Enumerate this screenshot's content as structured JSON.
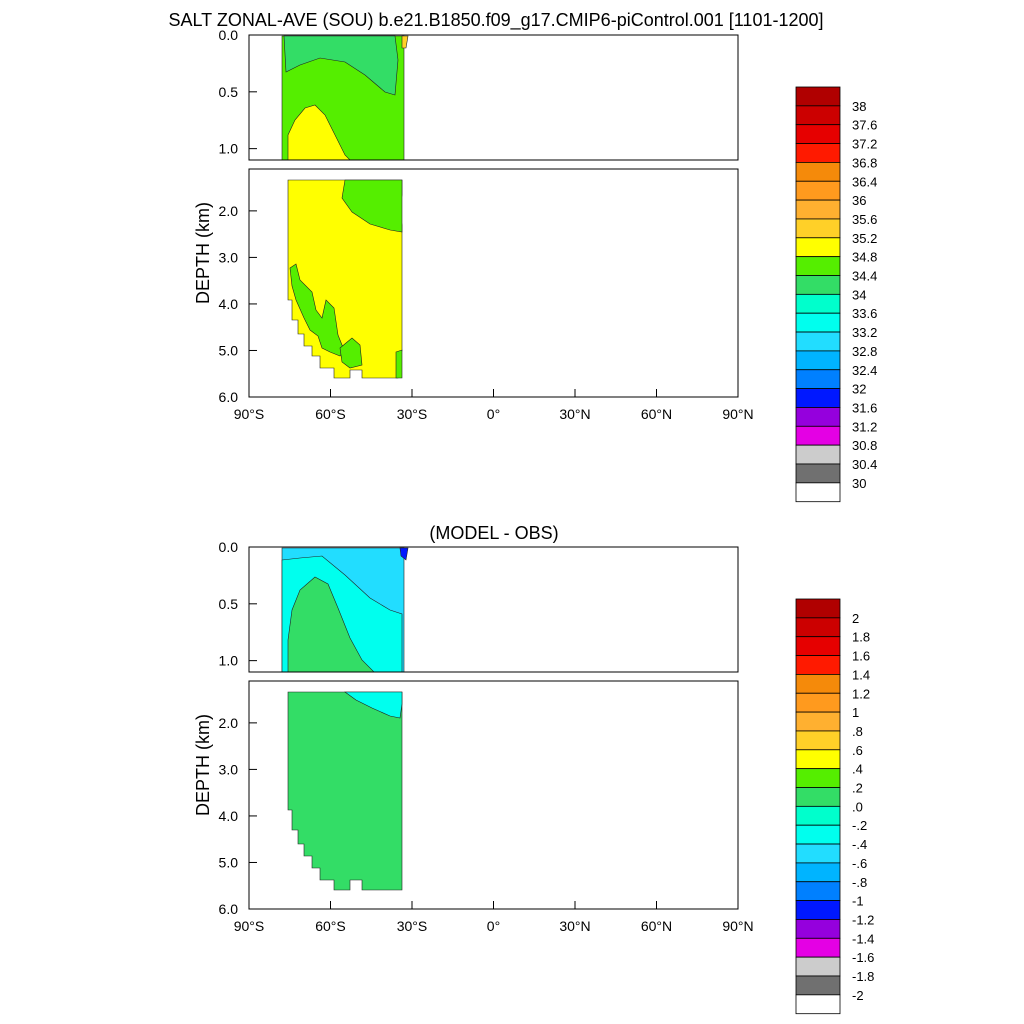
{
  "title": "SALT ZONAL-AVE (SOU) b.e21.B1850.f09_g17.CMIP6-piControl.001 [1101-1200]",
  "chart_data": [
    {
      "type": "contour",
      "title": "",
      "ylabel": "DEPTH (km)",
      "x_ticks": [
        "90°S",
        "60°S",
        "30°S",
        "0°",
        "30°N",
        "60°N",
        "90°N"
      ],
      "y_ticks_upper": [
        "0.0",
        "0.5",
        "1.0"
      ],
      "y_ticks_lower": [
        "2.0",
        "3.0",
        "4.0",
        "5.0",
        "6.0"
      ],
      "xlim": [
        -90,
        90
      ],
      "upper_ylim_km": [
        0,
        1.1
      ],
      "lower_ylim_km": [
        1.1,
        6.0
      ],
      "data_lat_range": [
        -78,
        -34
      ],
      "max_depth_km": 5.4,
      "regions": [
        {
          "level": "34.0-34.4",
          "depth": "surface, 0.0-0.8 km near 78°S-45°S"
        },
        {
          "level": "34.4-34.8",
          "depth": "0.2-1.1 km poleward, 1.1-2.3 km near 55°S-34°S"
        },
        {
          "level": "34.8-35.2",
          "depth": "intermediate and deep water 0.6-5.4 km"
        },
        {
          "level": "34.4-34.8",
          "depth": "abyssal patches 3.0-5.2 km near 75°S-60°S"
        },
        {
          "level": "35.2-35.6",
          "depth": "surface sliver near 34°S"
        }
      ],
      "colorbar": {
        "labels": [
          "38",
          "37.6",
          "37.2",
          "36.8",
          "36.4",
          "36",
          "35.6",
          "35.2",
          "34.8",
          "34.4",
          "34",
          "33.6",
          "33.2",
          "32.8",
          "32.4",
          "32",
          "31.6",
          "31.2",
          "30.8",
          "30.4",
          "30"
        ],
        "colors": [
          "#b00000",
          "#cc0000",
          "#e60000",
          "#ff1a00",
          "#f58a0a",
          "#ff9a1e",
          "#ffb030",
          "#ffd028",
          "#ffff00",
          "#55ee00",
          "#33dd66",
          "#00ffcc",
          "#00ffee",
          "#22ddff",
          "#00b4ff",
          "#0080ff",
          "#0018ff",
          "#9500dd",
          "#e400e4",
          "#cccccc",
          "#707070",
          "#ffffff"
        ]
      }
    },
    {
      "type": "contour",
      "title": "(MODEL - OBS)",
      "ylabel": "DEPTH (km)",
      "x_ticks": [
        "90°S",
        "60°S",
        "30°S",
        "0°",
        "30°N",
        "60°N",
        "90°N"
      ],
      "y_ticks_upper": [
        "0.0",
        "0.5",
        "1.0"
      ],
      "y_ticks_lower": [
        "2.0",
        "3.0",
        "4.0",
        "5.0",
        "6.0"
      ],
      "xlim": [
        -90,
        90
      ],
      "upper_ylim_km": [
        0,
        1.1
      ],
      "lower_ylim_km": [
        1.1,
        6.0
      ],
      "data_lat_range": [
        -78,
        -34
      ],
      "max_depth_km": 5.4,
      "regions": [
        {
          "level": "0.0-0.2",
          "depth": "most of the column 0.2-5.4 km"
        },
        {
          "level": "-0.4--0.2",
          "depth": "near surface 0.0-0.4 km, 78°S-60°S"
        },
        {
          "level": "-0.6--0.4",
          "depth": "0.0-1.3 km near 60°S-34°S"
        },
        {
          "level": "-1.0--0.8",
          "depth": "surface spot near 34°S"
        }
      ],
      "colorbar": {
        "labels": [
          "2",
          "1.8",
          "1.6",
          "1.4",
          "1.2",
          "1",
          ".8",
          ".6",
          ".4",
          ".2",
          ".0",
          "-.2",
          "-.4",
          "-.6",
          "-.8",
          "-1",
          "-1.2",
          "-1.4",
          "-1.6",
          "-1.8",
          "-2"
        ],
        "colors": [
          "#b00000",
          "#cc0000",
          "#e60000",
          "#ff1a00",
          "#f58a0a",
          "#ff9a1e",
          "#ffb030",
          "#ffd028",
          "#ffff00",
          "#55ee00",
          "#33dd66",
          "#00ffcc",
          "#00ffee",
          "#22ddff",
          "#00b4ff",
          "#0080ff",
          "#0018ff",
          "#9500dd",
          "#e400e4",
          "#cccccc",
          "#707070",
          "#ffffff"
        ]
      }
    }
  ]
}
